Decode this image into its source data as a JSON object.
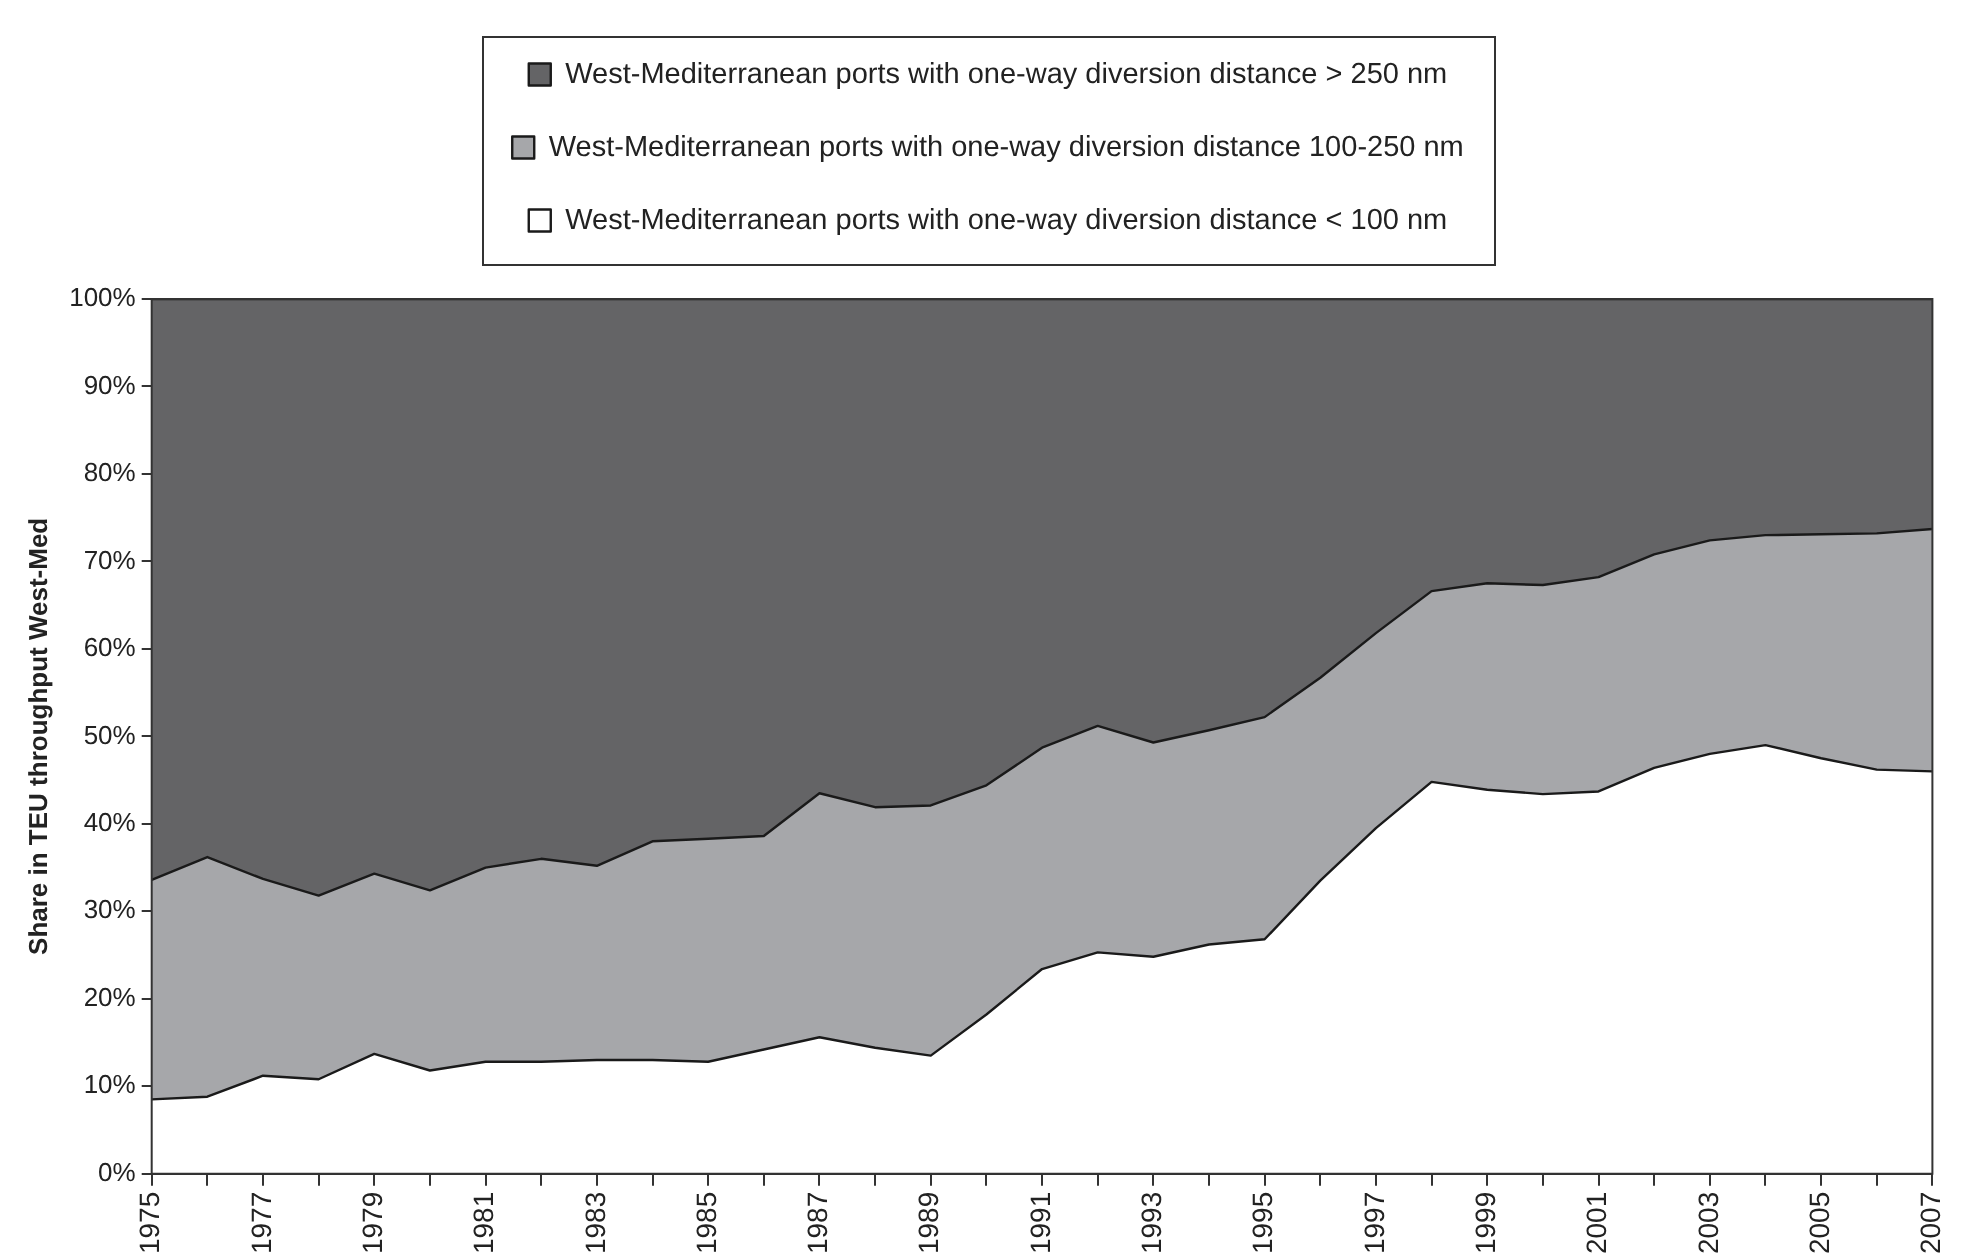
{
  "chart_data": {
    "type": "area",
    "stacked": true,
    "ylabel": "Share in TEU throughput West-Med",
    "x": [
      1975,
      1976,
      1977,
      1978,
      1979,
      1980,
      1981,
      1982,
      1983,
      1984,
      1985,
      1986,
      1987,
      1988,
      1989,
      1990,
      1991,
      1992,
      1993,
      1994,
      1995,
      1996,
      1997,
      1998,
      1999,
      2000,
      2001,
      2002,
      2003,
      2004,
      2005,
      2006,
      2007
    ],
    "series": [
      {
        "name": "West-Mediterranean ports with one-way diversion distance < 100 nm",
        "color": "#ffffff",
        "values": [
          8.5,
          8.8,
          11.2,
          10.8,
          13.7,
          11.8,
          12.8,
          12.8,
          13,
          13,
          12.8,
          14.2,
          15.6,
          14.4,
          13.5,
          18.2,
          23.4,
          25.3,
          24.8,
          26.2,
          26.8,
          33.5,
          39.5,
          44.8,
          43.9,
          43.4,
          43.7,
          46.4,
          48,
          49,
          47.5,
          46.2,
          46
        ]
      },
      {
        "name": "West-Mediterranean ports with one-way diversion distance 100-250 nm",
        "color": "#a6a7aa",
        "values": [
          25.1,
          27.4,
          22.5,
          21,
          20.6,
          20.6,
          22.2,
          23.2,
          22.2,
          25,
          25.5,
          24.4,
          27.9,
          27.5,
          28.6,
          26.2,
          25.3,
          25.9,
          24.5,
          24.5,
          25.4,
          23.2,
          22.3,
          21.8,
          23.6,
          23.9,
          24.5,
          24.4,
          24.4,
          24,
          25.6,
          27,
          27.7
        ]
      },
      {
        "name": "West-Mediterranean ports with one-way diversion distance > 250 nm",
        "color": "#646466",
        "values": [
          66.4,
          63.8,
          66.3,
          68.2,
          65.7,
          67.6,
          65,
          64,
          64.8,
          62,
          61.7,
          61.4,
          56.5,
          58.1,
          57.9,
          55.6,
          51.3,
          48.8,
          50.7,
          49.3,
          47.8,
          43.3,
          38.2,
          33.4,
          32.5,
          32.7,
          31.8,
          29.2,
          27.6,
          27,
          26.9,
          26.8,
          26.3
        ]
      }
    ],
    "xlim": [
      1975,
      2007
    ],
    "xticks": [
      1975,
      {
        "value": 1976,
        "label": null
      },
      1977,
      {
        "value": 1978,
        "label": null
      },
      1979,
      {
        "value": 1980,
        "label": null
      },
      1981,
      {
        "value": 1982,
        "label": null
      },
      1983,
      {
        "value": 1984,
        "label": null
      },
      1985,
      {
        "value": 1986,
        "label": null
      },
      1987,
      {
        "value": 1988,
        "label": null
      },
      1989,
      {
        "value": 1990,
        "label": null
      },
      1991,
      {
        "value": 1992,
        "label": null
      },
      1993,
      {
        "value": 1994,
        "label": null
      },
      1995,
      {
        "value": 1996,
        "label": null
      },
      1997,
      {
        "value": 1998,
        "label": null
      },
      1999,
      {
        "value": 2000,
        "label": null
      },
      2001,
      {
        "value": 2002,
        "label": null
      },
      2003,
      {
        "value": 2004,
        "label": null
      },
      2005,
      {
        "value": 2006,
        "label": null
      },
      2007
    ],
    "ylim": [
      0,
      100
    ],
    "yticks": [
      {
        "value": 0,
        "label": "0%"
      },
      {
        "value": 10,
        "label": "10%"
      },
      {
        "value": 20,
        "label": "20%"
      },
      {
        "value": 30,
        "label": "30%"
      },
      {
        "value": 40,
        "label": "40%"
      },
      {
        "value": 50,
        "label": "50%"
      },
      {
        "value": 60,
        "label": "60%"
      },
      {
        "value": 70,
        "label": "70%"
      },
      {
        "value": 80,
        "label": "80%"
      },
      {
        "value": 90,
        "label": "90%"
      },
      {
        "value": 100,
        "label": "100%"
      }
    ],
    "grid": false,
    "legend": "top"
  }
}
